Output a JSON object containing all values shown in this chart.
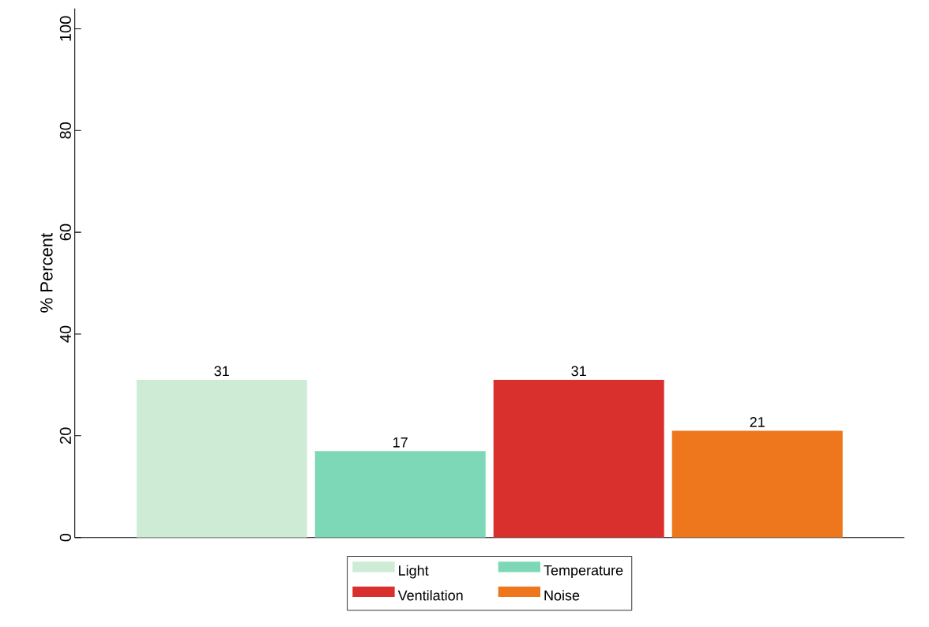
{
  "chart_data": {
    "type": "bar",
    "ylabel": "% Percent",
    "categories": [
      null
    ],
    "series": [
      {
        "name": "Light",
        "color": "#cdebd5",
        "values": [
          31
        ]
      },
      {
        "name": "Temperature",
        "color": "#7dd8b8",
        "values": [
          17
        ]
      },
      {
        "name": "Ventilation",
        "color": "#d9302d",
        "values": [
          31
        ]
      },
      {
        "name": "Noise",
        "color": "#ee761c",
        "values": [
          21
        ]
      }
    ],
    "ylim": [
      0,
      104
    ],
    "yticks": [
      0,
      20,
      40,
      60,
      80,
      100
    ],
    "data_labels": true,
    "legend": "bottom"
  }
}
